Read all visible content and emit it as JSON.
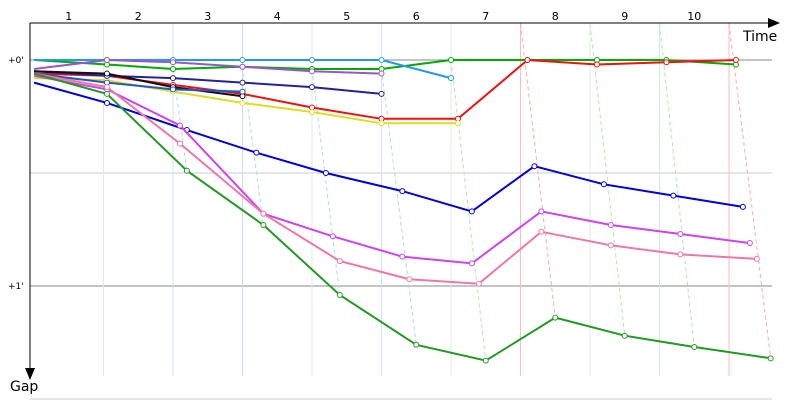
{
  "chart_data": {
    "type": "line",
    "xlabel": "Time",
    "ylabel": "Gap",
    "lap_labels": [
      "1",
      "2",
      "3",
      "4",
      "5",
      "6",
      "7",
      "8",
      "9",
      "10"
    ],
    "y_tick_labels": [
      {
        "value": 0,
        "label": "+0'"
      },
      {
        "value": 1,
        "label": "+1'"
      }
    ],
    "grid": true,
    "y_reversed": true,
    "colors": {
      "axis": "#000000",
      "horizontal_grid": "#888888",
      "light_grid": "#cccccc",
      "lap_lines": [
        "#ccddee",
        "#ddeedd",
        "#cfe6f0",
        "#ccddee",
        "#ddeedd",
        "#cfe6f0",
        "#ddeedd",
        "#ffbbbb",
        "#ddeedd",
        "#cceedd",
        "#ffbbbb"
      ]
    },
    "series": [
      {
        "color": "#00aa00",
        "points": [
          [
            0,
            0.0
          ],
          [
            1.05,
            0.02
          ],
          [
            2.0,
            0.04
          ],
          [
            3.0,
            0.03
          ],
          [
            4.0,
            0.04
          ],
          [
            5.0,
            0.04
          ],
          [
            6.0,
            0.0
          ],
          [
            7.1,
            0.0
          ],
          [
            8.1,
            0.0
          ],
          [
            9.1,
            0.0
          ],
          [
            10.1,
            0.02
          ]
        ]
      },
      {
        "color": "#2299ee",
        "points": [
          [
            0,
            0.0
          ],
          [
            1.05,
            0.0
          ],
          [
            2.0,
            0.0
          ],
          [
            3.0,
            0.0
          ],
          [
            4.0,
            0.0
          ],
          [
            5.0,
            0.0
          ],
          [
            6.0,
            0.08
          ]
        ]
      },
      {
        "color": "#ee1111",
        "points": [
          [
            0,
            0.06
          ],
          [
            1.05,
            0.07
          ],
          [
            2.0,
            0.11
          ],
          [
            3.0,
            0.15
          ],
          [
            4.0,
            0.21
          ],
          [
            5.0,
            0.26
          ],
          [
            6.1,
            0.26
          ],
          [
            7.1,
            0.0
          ],
          [
            8.1,
            0.02
          ],
          [
            9.1,
            0.01
          ],
          [
            10.1,
            0.0
          ]
        ]
      },
      {
        "color": "#dddd22",
        "points": [
          [
            0,
            0.08
          ],
          [
            1.05,
            0.09
          ],
          [
            2.0,
            0.14
          ],
          [
            3.0,
            0.19
          ],
          [
            4.0,
            0.23
          ],
          [
            5.0,
            0.28
          ],
          [
            6.1,
            0.28
          ]
        ]
      },
      {
        "color": "#222299",
        "points": [
          [
            0,
            0.05
          ],
          [
            1.05,
            0.07
          ],
          [
            2.0,
            0.08
          ],
          [
            3.0,
            0.1
          ],
          [
            4.0,
            0.12
          ],
          [
            5.0,
            0.15
          ]
        ]
      },
      {
        "color": "#9955cc",
        "points": [
          [
            0,
            0.04
          ],
          [
            1.05,
            0.0
          ],
          [
            2.0,
            0.01
          ],
          [
            3.0,
            0.03
          ],
          [
            4.0,
            0.05
          ],
          [
            5.0,
            0.06
          ]
        ]
      },
      {
        "color": "#111111",
        "points": [
          [
            0,
            0.05
          ],
          [
            1.05,
            0.06
          ],
          [
            2.0,
            0.12
          ],
          [
            3.0,
            0.16
          ]
        ]
      },
      {
        "color": "#2255cc",
        "points": [
          [
            0,
            0.06
          ],
          [
            1.05,
            0.1
          ],
          [
            2.0,
            0.13
          ],
          [
            3.0,
            0.14
          ]
        ]
      },
      {
        "color": "#0000dd",
        "points": [
          [
            0,
            0.1
          ],
          [
            1.05,
            0.19
          ],
          [
            2.2,
            0.31
          ],
          [
            3.2,
            0.41
          ],
          [
            4.2,
            0.5
          ],
          [
            5.3,
            0.58
          ],
          [
            6.3,
            0.67
          ],
          [
            7.2,
            0.47
          ],
          [
            8.2,
            0.55
          ],
          [
            9.2,
            0.6
          ],
          [
            10.2,
            0.65
          ]
        ]
      },
      {
        "color": "#cc44ee",
        "points": [
          [
            0,
            0.07
          ],
          [
            1.05,
            0.13
          ],
          [
            2.1,
            0.29
          ],
          [
            3.3,
            0.68
          ],
          [
            4.3,
            0.78
          ],
          [
            5.3,
            0.87
          ],
          [
            6.3,
            0.9
          ],
          [
            7.3,
            0.67
          ],
          [
            8.3,
            0.73
          ],
          [
            9.3,
            0.77
          ],
          [
            10.3,
            0.81
          ]
        ]
      },
      {
        "color": "#ee77aa",
        "points": [
          [
            0,
            0.06
          ],
          [
            1.05,
            0.12
          ],
          [
            2.1,
            0.37
          ],
          [
            3.3,
            0.68
          ],
          [
            4.4,
            0.89
          ],
          [
            5.4,
            0.97
          ],
          [
            6.4,
            0.99
          ],
          [
            7.3,
            0.76
          ],
          [
            8.3,
            0.82
          ],
          [
            9.3,
            0.86
          ],
          [
            10.4,
            0.88
          ]
        ]
      },
      {
        "color": "#229922",
        "points": [
          [
            0,
            0.06
          ],
          [
            1.05,
            0.15
          ],
          [
            2.2,
            0.49
          ],
          [
            3.3,
            0.73
          ],
          [
            4.4,
            1.04
          ],
          [
            5.5,
            1.26
          ],
          [
            6.5,
            1.33
          ],
          [
            7.5,
            1.14
          ],
          [
            8.5,
            1.22
          ],
          [
            9.5,
            1.27
          ],
          [
            10.6,
            1.32
          ]
        ]
      }
    ]
  }
}
